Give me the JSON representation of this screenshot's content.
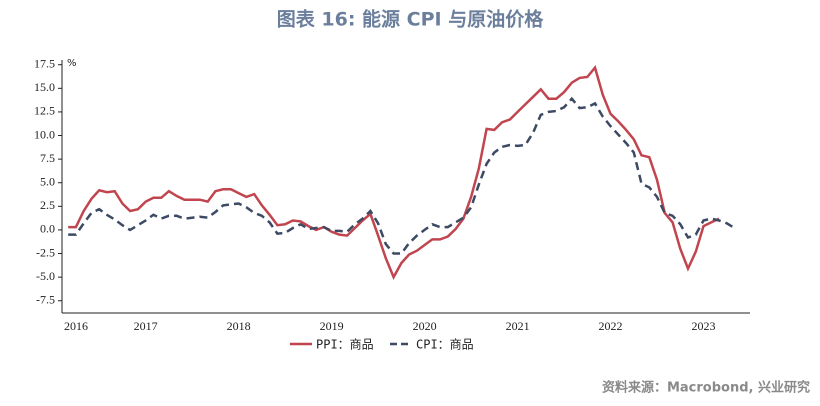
{
  "chart_data": {
    "type": "line",
    "title": "图表 16: 能源 CPI 与原油价格",
    "y_unit": "%",
    "source": "资料来源：Macrobond, 兴业研究",
    "x": [
      2016.667,
      2016.75,
      2016.833,
      2016.917,
      2017.0,
      2017.083,
      2017.167,
      2017.25,
      2017.333,
      2017.417,
      2017.5,
      2017.583,
      2017.667,
      2017.75,
      2017.833,
      2017.917,
      2018.0,
      2018.083,
      2018.167,
      2018.25,
      2018.333,
      2018.417,
      2018.5,
      2018.583,
      2018.667,
      2018.75,
      2018.833,
      2018.917,
      2019.0,
      2019.083,
      2019.167,
      2019.25,
      2019.333,
      2019.417,
      2019.5,
      2019.583,
      2019.667,
      2019.75,
      2019.833,
      2019.917,
      2020.0,
      2020.083,
      2020.167,
      2020.25,
      2020.333,
      2020.417,
      2020.5,
      2020.583,
      2020.667,
      2020.75,
      2020.833,
      2020.917,
      2021.0,
      2021.083,
      2021.167,
      2021.25,
      2021.333,
      2021.417,
      2021.5,
      2021.583,
      2021.667,
      2021.75,
      2021.833,
      2021.917,
      2022.0,
      2022.083,
      2022.167,
      2022.25,
      2022.333,
      2022.417,
      2022.5,
      2022.583,
      2022.667,
      2022.75,
      2022.833,
      2022.917,
      2023.0,
      2023.083,
      2023.167,
      2023.25,
      2023.333,
      2023.417,
      2023.5,
      2023.583,
      2023.667,
      2023.75,
      2023.833
    ],
    "series": [
      {
        "name": "PPI：商品",
        "color": "#c0454f",
        "dash": false,
        "values": [
          0.3,
          0.3,
          2.0,
          3.3,
          4.2,
          4.0,
          4.1,
          2.8,
          2.0,
          2.2,
          3.0,
          3.4,
          3.4,
          4.1,
          3.6,
          3.2,
          3.2,
          3.2,
          3.0,
          4.1,
          4.3,
          4.3,
          3.9,
          3.5,
          3.8,
          2.6,
          1.6,
          0.5,
          0.6,
          1.0,
          0.9,
          0.4,
          0.0,
          0.3,
          -0.2,
          -0.5,
          -0.6,
          0.2,
          1.0,
          1.7,
          -0.6,
          -3.0,
          -5.0,
          -3.5,
          -2.6,
          -2.2,
          -1.6,
          -1.0,
          -1.0,
          -0.7,
          0.1,
          1.2,
          3.5,
          6.5,
          10.7,
          10.6,
          11.4,
          11.7,
          12.5,
          13.3,
          14.1,
          14.9,
          13.9,
          13.9,
          14.6,
          15.6,
          16.1,
          16.2,
          17.2,
          14.3,
          12.3,
          11.5,
          10.6,
          9.6,
          7.9,
          7.7,
          5.3,
          1.8,
          0.8,
          -2.0,
          -4.1,
          -2.3,
          0.4,
          0.8,
          1.2,
          null,
          null
        ]
      },
      {
        "name": "CPI：商品",
        "color": "#3d4a63",
        "dash": true,
        "values": [
          -0.5,
          -0.5,
          0.7,
          1.8,
          2.2,
          1.6,
          1.1,
          0.5,
          0.0,
          0.5,
          1.0,
          1.6,
          1.2,
          1.5,
          1.5,
          1.2,
          1.3,
          1.4,
          1.3,
          1.9,
          2.6,
          2.7,
          2.8,
          2.4,
          1.8,
          1.5,
          0.8,
          -0.4,
          -0.3,
          0.2,
          0.6,
          0.1,
          0.2,
          0.3,
          -0.1,
          -0.1,
          -0.2,
          0.6,
          1.2,
          2.0,
          0.7,
          -1.5,
          -2.5,
          -2.5,
          -1.4,
          -0.6,
          0.0,
          0.6,
          0.3,
          0.3,
          0.8,
          1.3,
          2.4,
          4.8,
          7.0,
          8.2,
          8.8,
          9.0,
          8.9,
          9.0,
          10.3,
          12.2,
          12.5,
          12.6,
          13.0,
          13.9,
          12.9,
          13.0,
          13.4,
          12.0,
          11.0,
          10.1,
          9.2,
          8.2,
          4.9,
          4.5,
          3.5,
          1.8,
          1.5,
          0.6,
          -0.8,
          -0.5,
          1.0,
          1.2,
          1.0,
          0.7,
          0.2
        ]
      }
    ],
    "xlim": [
      2016.6,
      2024
    ],
    "xticks": [
      {
        "value": 2016.75,
        "label": "2016"
      },
      {
        "value": 2017.5,
        "label": "2017"
      },
      {
        "value": 2018.5,
        "label": "2018"
      },
      {
        "value": 2019.5,
        "label": "2019"
      },
      {
        "value": 2020.5,
        "label": "2020"
      },
      {
        "value": 2021.5,
        "label": "2021"
      },
      {
        "value": 2022.5,
        "label": "2022"
      },
      {
        "value": 2023.5,
        "label": "2023"
      }
    ],
    "ylim": [
      -8.8,
      18
    ],
    "yticks": [
      -7.5,
      {
        "value": -5,
        "label": "-5.0"
      },
      -2.5,
      {
        "value": 0,
        "label": "0.0"
      },
      2.5,
      {
        "value": 5,
        "label": "5.0"
      },
      7.5,
      {
        "value": 10,
        "label": "10.0"
      },
      12.5,
      {
        "value": 15,
        "label": "15.0"
      },
      17.5
    ],
    "legend": "bottom"
  }
}
